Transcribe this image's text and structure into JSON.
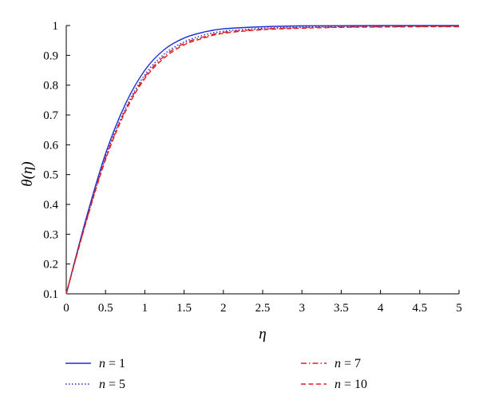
{
  "chart_data": {
    "type": "line",
    "xlabel": "η",
    "ylabel": "θ(η)",
    "xlim": [
      0,
      5
    ],
    "ylim": [
      0.1,
      1
    ],
    "x_ticks": [
      "0",
      "0.5",
      "1",
      "1.5",
      "2",
      "2.5",
      "3",
      "3.5",
      "4",
      "4.5",
      "5"
    ],
    "y_ticks": [
      "0.1",
      "0.2",
      "0.3",
      "0.4",
      "0.5",
      "0.6",
      "0.7",
      "0.8",
      "0.9",
      "1"
    ],
    "grid": false,
    "legend_position": "bottom",
    "x": [
      0,
      0.25,
      0.5,
      0.75,
      1,
      1.25,
      1.5,
      1.75,
      2,
      2.5,
      3,
      3.5,
      4,
      4.5,
      5
    ],
    "series": [
      {
        "label_var": "n",
        "label_eq": " = ",
        "label_num": "1",
        "color": "#1f2fd6",
        "dash": "solid",
        "values": [
          0.1,
          0.35,
          0.57,
          0.735,
          0.85,
          0.92,
          0.958,
          0.978,
          0.989,
          0.996,
          0.999,
          0.9995,
          1.0,
          1.0,
          1.0
        ]
      },
      {
        "label_var": "n",
        "label_eq": " = ",
        "label_num": "5",
        "color": "#1f2fd6",
        "dash": "dotted",
        "values": [
          0.1,
          0.345,
          0.56,
          0.72,
          0.835,
          0.905,
          0.945,
          0.968,
          0.981,
          0.991,
          0.995,
          0.997,
          0.998,
          0.999,
          0.999
        ]
      },
      {
        "label_var": "n",
        "label_eq": " = ",
        "label_num": "7",
        "color": "#e02020",
        "dash": "dashdot",
        "values": [
          0.1,
          0.34,
          0.555,
          0.715,
          0.828,
          0.898,
          0.94,
          0.962,
          0.977,
          0.988,
          0.993,
          0.995,
          0.996,
          0.997,
          0.997
        ]
      },
      {
        "label_var": "n",
        "label_eq": " = ",
        "label_num": "10",
        "color": "#e02020",
        "dash": "dashed",
        "values": [
          0.1,
          0.338,
          0.55,
          0.71,
          0.822,
          0.892,
          0.935,
          0.958,
          0.974,
          0.986,
          0.991,
          0.994,
          0.995,
          0.996,
          0.996
        ]
      }
    ]
  }
}
